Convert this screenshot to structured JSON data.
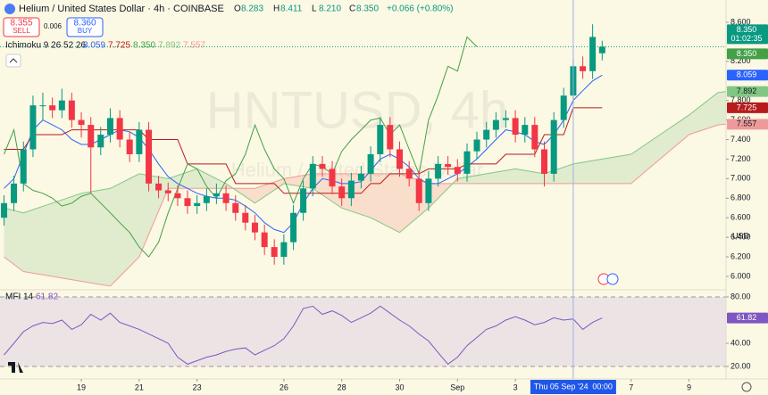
{
  "toolbar": {
    "sell_price": "8.355",
    "sell": "SELL",
    "spread": "0.006",
    "buy_price": "8.360",
    "buy": "BUY"
  },
  "watermark": {
    "ticker": "HNTUSD, 4h",
    "name": "Helium / United States Dollar"
  },
  "chart_data": [
    {
      "type": "candlestick",
      "title": "Helium / United States Dollar · 4h · COINBASE",
      "ohlc_legend": [
        {
          "key": "O",
          "value": "8.283"
        },
        {
          "key": "H",
          "value": "8.411"
        },
        {
          "key": "L",
          "value": "8.210"
        },
        {
          "key": "C",
          "value": "8.350"
        }
      ],
      "change": "+0.066 (+0.80%)",
      "x": [
        16.33,
        16.67,
        17,
        17.33,
        17.67,
        18,
        18.33,
        18.67,
        19,
        19.33,
        19.67,
        20,
        20.33,
        20.67,
        21,
        21.33,
        21.67,
        22,
        22.33,
        22.67,
        23,
        23.33,
        23.67,
        24,
        24.33,
        24.67,
        25,
        25.33,
        25.67,
        26,
        26.33,
        26.67,
        27,
        27.33,
        27.67,
        28,
        28.33,
        28.67,
        29,
        29.33,
        29.67,
        30,
        30.33,
        30.67,
        31,
        31.33,
        31.67,
        32,
        32.33,
        32.67,
        33,
        33.33,
        33.67,
        34,
        34.33,
        34.67,
        35,
        35.33,
        35.67,
        36,
        36.33,
        36.67,
        37
      ],
      "open": [
        6.6,
        6.75,
        6.95,
        7.3,
        7.75,
        7.75,
        7.7,
        7.8,
        7.6,
        7.55,
        7.32,
        7.45,
        7.62,
        7.4,
        7.25,
        7.5,
        6.95,
        6.88,
        6.85,
        6.8,
        6.72,
        6.75,
        6.82,
        6.85,
        6.75,
        6.65,
        6.55,
        6.45,
        6.3,
        6.2,
        6.35,
        6.65,
        6.9,
        7.15,
        7.1,
        6.92,
        6.8,
        6.98,
        7.05,
        7.25,
        7.55,
        7.3,
        7.1,
        7.0,
        6.75,
        7.0,
        7.15,
        7.12,
        7.05,
        7.28,
        7.4,
        7.5,
        7.6,
        7.62,
        7.45,
        7.55,
        7.3,
        7.05,
        7.6,
        7.85,
        8.15,
        8.1,
        8.283
      ],
      "high": [
        6.83,
        7.03,
        7.38,
        7.85,
        7.88,
        7.83,
        7.92,
        7.88,
        7.68,
        7.63,
        7.53,
        7.72,
        7.7,
        7.48,
        7.58,
        7.58,
        7.03,
        6.96,
        6.93,
        6.88,
        6.83,
        6.9,
        6.95,
        6.93,
        6.83,
        6.73,
        6.63,
        6.53,
        6.38,
        6.43,
        6.73,
        6.98,
        7.23,
        7.23,
        7.18,
        7.0,
        7.06,
        7.13,
        7.33,
        7.63,
        7.63,
        7.38,
        7.18,
        7.08,
        7.08,
        7.23,
        7.23,
        7.2,
        7.36,
        7.48,
        7.58,
        7.68,
        7.7,
        7.7,
        7.63,
        7.63,
        7.38,
        7.68,
        7.93,
        8.23,
        8.25,
        8.58,
        8.411
      ],
      "low": [
        6.52,
        6.67,
        6.87,
        7.22,
        7.6,
        7.62,
        7.62,
        7.52,
        7.42,
        6.85,
        7.24,
        7.37,
        7.32,
        7.17,
        7.17,
        6.87,
        6.8,
        6.77,
        6.72,
        6.64,
        6.64,
        6.67,
        6.74,
        6.67,
        6.57,
        6.47,
        6.37,
        6.22,
        6.12,
        6.12,
        6.27,
        6.57,
        6.82,
        7.02,
        6.84,
        6.72,
        6.72,
        6.9,
        6.97,
        7.17,
        7.22,
        7.02,
        6.92,
        6.67,
        6.67,
        6.92,
        7.04,
        6.97,
        6.97,
        7.2,
        7.32,
        7.42,
        7.52,
        7.37,
        7.37,
        7.22,
        6.92,
        6.97,
        7.52,
        7.77,
        8.02,
        8.02,
        8.21
      ],
      "close": [
        6.75,
        6.95,
        7.3,
        7.75,
        7.75,
        7.7,
        7.8,
        7.6,
        7.55,
        7.32,
        7.45,
        7.62,
        7.4,
        7.25,
        7.5,
        6.95,
        6.88,
        6.85,
        6.8,
        6.72,
        6.75,
        6.82,
        6.85,
        6.75,
        6.65,
        6.55,
        6.45,
        6.3,
        6.2,
        6.35,
        6.65,
        6.9,
        7.15,
        7.1,
        6.92,
        6.8,
        6.98,
        7.05,
        7.25,
        7.55,
        7.3,
        7.1,
        7.0,
        6.75,
        7.0,
        7.15,
        7.12,
        7.05,
        7.28,
        7.4,
        7.5,
        7.6,
        7.62,
        7.45,
        7.55,
        7.3,
        7.05,
        7.6,
        7.85,
        8.15,
        8.1,
        8.45,
        8.35
      ],
      "up_color": "#089981",
      "down_color": "#f23645",
      "close_label": "8.350",
      "countdown": "01:02:35",
      "xlim": [
        16.19,
        41.28
      ],
      "xticks": [
        19,
        21,
        23,
        26,
        28,
        30,
        {
          "value": 32,
          "label": "Sep"
        },
        {
          "value": 34,
          "label": "3"
        },
        {
          "value": 38,
          "label": "7"
        },
        {
          "value": 40,
          "label": "9"
        }
      ],
      "ylim": [
        5.863,
        8.828
      ],
      "yticks": [
        {
          "value": 6,
          "label": "6.000"
        },
        {
          "value": 6.2,
          "label": "6.200"
        },
        {
          "value": 6.4,
          "label": "6.400"
        },
        {
          "value": 6.6,
          "label": "6.600"
        },
        {
          "value": 6.8,
          "label": "6.800"
        },
        {
          "value": 7,
          "label": "7.000"
        },
        {
          "value": 7.2,
          "label": "7.200"
        },
        {
          "value": 7.4,
          "label": "7.400"
        },
        {
          "value": 7.6,
          "label": "7.600"
        },
        {
          "value": 7.8,
          "label": "7.800"
        },
        {
          "value": 8.2,
          "label": "8.200"
        },
        {
          "value": 8.6,
          "label": "8.600"
        }
      ],
      "y_unit": "USD",
      "crosshair": {
        "x": 36,
        "date": "Thu 05 Sep '24",
        "time": "00:00"
      },
      "indicator": {
        "name": "Ichimoku 9 26 52 26",
        "lines": [
          {
            "color": "#2962ff",
            "values": [
              6.9,
              7.0,
              7.25,
              7.5,
              7.6,
              7.55,
              7.5,
              7.4,
              7.35,
              7.35,
              7.4,
              7.45,
              7.5,
              7.48,
              7.42,
              7.3,
              7.15,
              7.02,
              6.95,
              6.9,
              6.85,
              6.82,
              6.8,
              6.8,
              6.78,
              6.72,
              6.65,
              6.55,
              6.48,
              6.45,
              6.55,
              6.75,
              6.9,
              7.0,
              6.98,
              6.95,
              6.95,
              6.97,
              7.08,
              7.2,
              7.25,
              7.2,
              7.12,
              7.0,
              6.95,
              6.95,
              7.0,
              7.05,
              7.12,
              7.2,
              7.3,
              7.4,
              7.5,
              7.48,
              7.45,
              7.38,
              7.35,
              7.45,
              7.6,
              7.8,
              7.9,
              8.0,
              8.059
            ]
          },
          {
            "color": "#b71c1c",
            "values": [
              7.3,
              7.3,
              7.3,
              7.45,
              7.45,
              7.45,
              7.45,
              7.5,
              7.5,
              7.5,
              7.5,
              7.5,
              7.5,
              7.5,
              7.5,
              7.4,
              7.4,
              7.4,
              7.4,
              7.15,
              7.15,
              7.15,
              7.15,
              7.15,
              6.95,
              6.95,
              6.95,
              6.95,
              6.95,
              6.85,
              6.85,
              6.85,
              6.85,
              6.85,
              6.85,
              6.85,
              6.85,
              6.85,
              6.95,
              6.95,
              7.05,
              7.05,
              7.05,
              7.05,
              7.1,
              7.1,
              7.1,
              7.1,
              7.15,
              7.15,
              7.15,
              7.15,
              7.25,
              7.25,
              7.25,
              7.25,
              7.45,
              7.45,
              7.45,
              7.725,
              7.725,
              7.725,
              7.725
            ]
          },
          {
            "color": "#43a047",
            "value_label": "8.350",
            "x": [
              16.33,
              16.67,
              17,
              17.33,
              17.67,
              18,
              18.33,
              18.67,
              19,
              19.33,
              19.67,
              20,
              20.33,
              20.67,
              21,
              21.33,
              21.67,
              22,
              22.33,
              22.67,
              23,
              23.33,
              23.67,
              24,
              24.33,
              24.67,
              25,
              25.33,
              25.67,
              26,
              26.33,
              26.67,
              27,
              27.33,
              27.67,
              28,
              28.33,
              28.67,
              29,
              29.33,
              29.67,
              30,
              30.33,
              30.67,
              31,
              31.33,
              31.67,
              32,
              32.33,
              32.67
            ],
            "values": [
              7.25,
              7.5,
              6.95,
              6.88,
              6.85,
              6.8,
              6.72,
              6.75,
              6.82,
              6.85,
              6.75,
              6.65,
              6.55,
              6.45,
              6.3,
              6.2,
              6.35,
              6.65,
              6.9,
              7.15,
              7.1,
              6.92,
              6.8,
              6.98,
              7.05,
              7.25,
              7.55,
              7.3,
              7.1,
              7.0,
              6.75,
              7.0,
              7.15,
              7.12,
              7.05,
              7.28,
              7.4,
              7.5,
              7.6,
              7.62,
              7.45,
              7.55,
              7.3,
              7.05,
              7.6,
              7.85,
              8.15,
              8.1,
              8.45,
              8.35
            ]
          }
        ],
        "cloud": {
          "x": [
            16.33,
            17,
            18,
            19,
            20,
            21,
            22,
            23,
            24,
            25,
            26,
            27,
            28,
            29,
            30,
            31,
            32,
            33,
            34,
            35,
            36,
            37,
            38,
            39,
            40,
            41,
            41.28
          ],
          "span_a": {
            "color": "#81c784",
            "values": [
              6.7,
              6.65,
              6.75,
              6.85,
              6.9,
              7.05,
              7.0,
              7.1,
              6.95,
              6.75,
              6.95,
              6.9,
              6.7,
              6.6,
              6.45,
              6.7,
              7.0,
              7.05,
              7.1,
              7.05,
              7.15,
              7.2,
              7.25,
              7.45,
              7.65,
              7.88,
              7.892
            ]
          },
          "span_b": {
            "color": "#ef9a9a",
            "values": [
              6.2,
              6.05,
              6.0,
              5.95,
              5.9,
              6.2,
              6.9,
              6.9,
              6.9,
              6.9,
              7.0,
              7.05,
              7.05,
              7.05,
              7.05,
              6.95,
              6.95,
              6.95,
              6.95,
              6.95,
              6.95,
              6.95,
              6.95,
              7.2,
              7.45,
              7.55,
              7.557
            ]
          },
          "up_fill": "#43a047",
          "down_fill": "#f44336"
        }
      }
    },
    {
      "type": "line",
      "title": "MFI 14",
      "color": "#7e57c2",
      "x": [
        16.33,
        16.67,
        17,
        17.33,
        17.67,
        18,
        18.33,
        18.67,
        19,
        19.33,
        19.67,
        20,
        20.33,
        20.67,
        21,
        21.33,
        21.67,
        22,
        22.33,
        22.67,
        23,
        23.33,
        23.67,
        24,
        24.33,
        24.67,
        25,
        25.33,
        25.67,
        26,
        26.33,
        26.67,
        27,
        27.33,
        27.67,
        28,
        28.33,
        28.67,
        29,
        29.33,
        29.67,
        30,
        30.33,
        30.67,
        31,
        31.33,
        31.67,
        32,
        32.33,
        32.67,
        33,
        33.33,
        33.67,
        34,
        34.33,
        34.67,
        35,
        35.33,
        35.67,
        36,
        36.33,
        36.67,
        37
      ],
      "values": [
        30,
        40,
        50,
        55,
        58,
        57,
        60,
        52,
        56,
        65,
        60,
        66,
        58,
        55,
        52,
        48,
        44,
        40,
        28,
        22,
        25,
        28,
        30,
        33,
        35,
        36,
        30,
        34,
        38,
        44,
        55,
        70,
        72,
        65,
        68,
        64,
        58,
        62,
        66,
        72,
        66,
        60,
        55,
        48,
        42,
        32,
        22,
        28,
        38,
        45,
        52,
        55,
        60,
        63,
        60,
        56,
        58,
        62,
        60,
        61,
        52,
        58,
        61.82
      ],
      "ylim": [
        9.23,
        86.15
      ],
      "yticks": [
        {
          "value": 20,
          "label": "20.00"
        },
        {
          "value": 40,
          "label": "40.00"
        },
        {
          "value": 80,
          "label": "80.00"
        }
      ]
    }
  ]
}
